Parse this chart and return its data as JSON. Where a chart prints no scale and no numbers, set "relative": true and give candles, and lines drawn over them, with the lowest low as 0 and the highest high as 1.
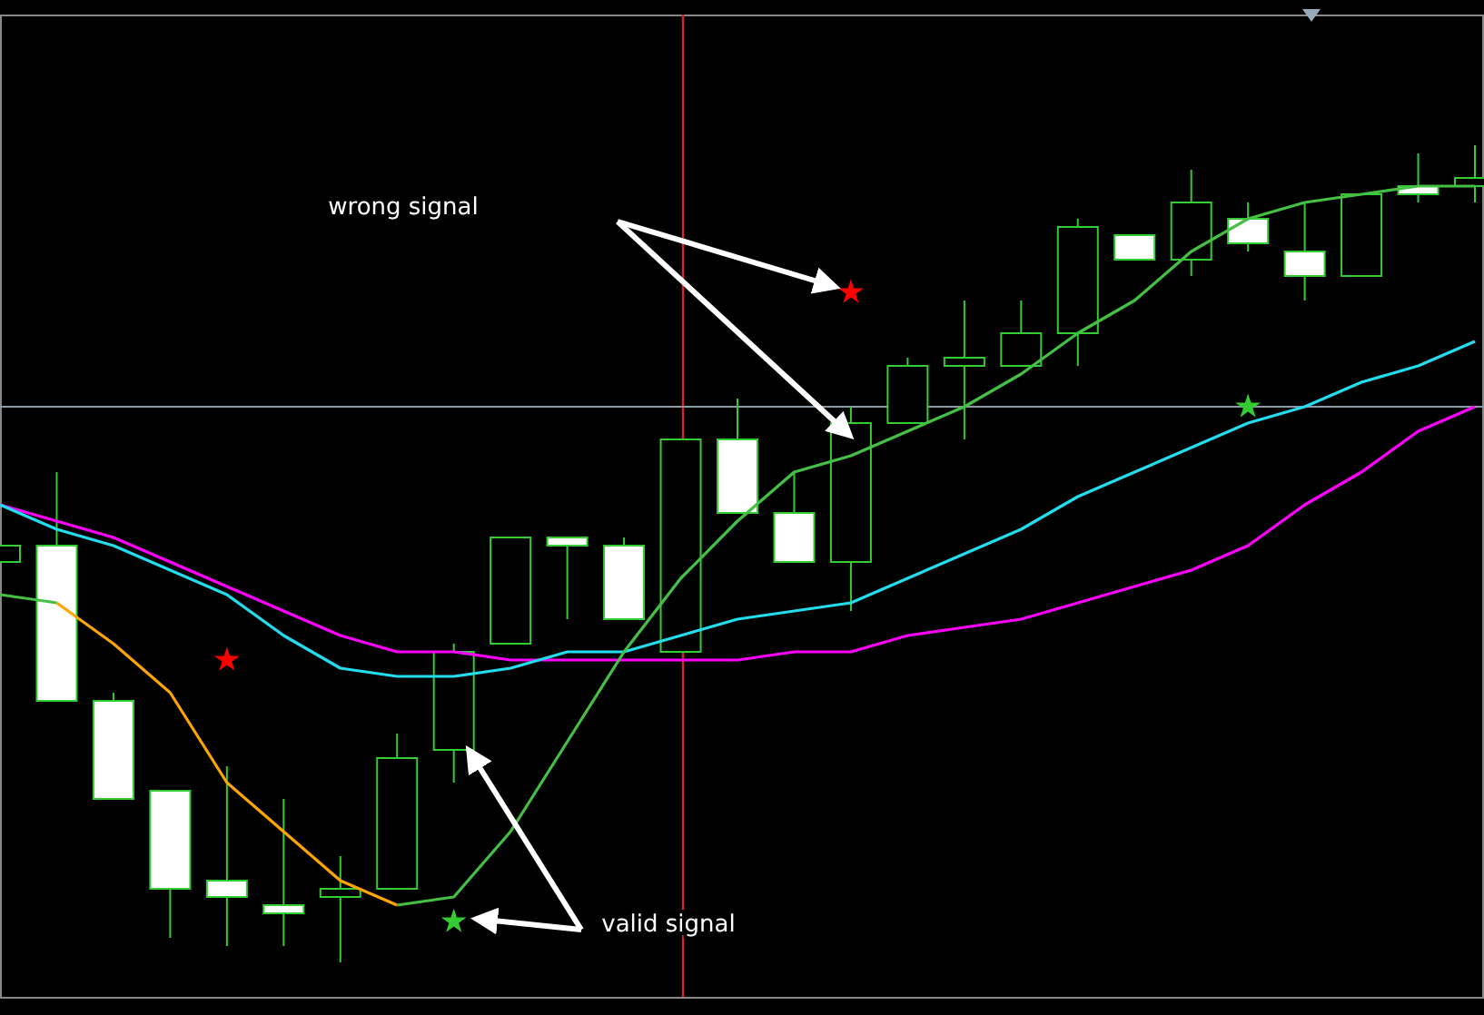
{
  "chart_data": {
    "type": "candlestick",
    "relative": true,
    "categories": [
      null,
      null,
      null,
      null,
      null,
      null,
      null,
      null,
      null,
      null,
      null,
      null,
      null,
      null,
      null,
      null,
      null,
      null,
      null,
      null,
      null,
      null,
      null,
      null,
      null,
      null,
      null
    ],
    "ohlc": [
      [
        0.49,
        0.51,
        0.49,
        0.51
      ],
      [
        0.51,
        0.6,
        0.32,
        0.32
      ],
      [
        0.32,
        0.33,
        0.2,
        0.2
      ],
      [
        0.21,
        0.21,
        0.03,
        0.09
      ],
      [
        0.1,
        0.24,
        0.02,
        0.08
      ],
      [
        0.07,
        0.2,
        0.02,
        0.06
      ],
      [
        0.08,
        0.13,
        0,
        0.09
      ],
      [
        0.09,
        0.28,
        0.09,
        0.25
      ],
      [
        0.26,
        0.39,
        0.22,
        0.38
      ],
      [
        0.39,
        0.52,
        0.39,
        0.52
      ],
      [
        0.52,
        0.52,
        0.42,
        0.51
      ],
      [
        0.51,
        0.52,
        0.42,
        0.42
      ],
      [
        0.38,
        0.64,
        0.38,
        0.64
      ],
      [
        0.64,
        0.69,
        0.55,
        0.55
      ],
      [
        0.55,
        0.6,
        0.49,
        0.49
      ],
      [
        0.49,
        0.68,
        0.43,
        0.66
      ],
      [
        0.66,
        0.74,
        0.66,
        0.73
      ],
      [
        0.73,
        0.81,
        0.64,
        0.74
      ],
      [
        0.73,
        0.81,
        0.73,
        0.77
      ],
      [
        0.77,
        0.91,
        0.73,
        0.9
      ],
      [
        0.89,
        0.89,
        0.86,
        0.86
      ],
      [
        0.86,
        0.97,
        0.84,
        0.93
      ],
      [
        0.91,
        0.93,
        0.87,
        0.88
      ],
      [
        0.87,
        0.93,
        0.81,
        0.84
      ],
      [
        0.84,
        0.94,
        0.84,
        0.94
      ],
      [
        0.95,
        0.99,
        0.93,
        0.94
      ],
      [
        0.95,
        1,
        0.93,
        0.96
      ]
    ],
    "series": [
      {
        "type": "line",
        "color": "#ff00ff",
        "values": [
          0.56,
          0.54,
          0.52,
          0.49,
          0.46,
          0.43,
          0.4,
          0.38,
          0.38,
          0.37,
          0.37,
          0.37,
          0.37,
          0.37,
          0.38,
          0.38,
          0.4,
          0.41,
          0.42,
          0.44,
          0.46,
          0.48,
          0.51,
          0.56,
          0.6,
          0.65,
          0.68
        ]
      },
      {
        "type": "line",
        "color": "#22ddee",
        "values": [
          0.56,
          0.53,
          0.51,
          0.48,
          0.45,
          0.4,
          0.36,
          0.35,
          0.35,
          0.36,
          0.38,
          0.38,
          0.4,
          0.42,
          0.43,
          0.44,
          0.47,
          0.5,
          0.53,
          0.57,
          0.6,
          0.63,
          0.66,
          0.68,
          0.71,
          0.73,
          0.76
        ]
      },
      {
        "type": "line",
        "color": "#ffa500",
        "values": [
          null,
          0.44,
          0.39,
          0.33,
          0.22,
          0.16,
          0.1,
          0.07,
          null,
          null,
          null,
          null,
          null,
          null,
          null,
          null,
          null,
          null,
          null,
          null,
          null,
          null,
          null,
          null,
          null,
          null,
          null
        ]
      },
      {
        "type": "line",
        "color": "#44c044",
        "values": [
          0.45,
          0.44,
          null,
          null,
          null,
          null,
          null,
          0.07,
          0.08,
          0.16,
          0.27,
          0.38,
          0.47,
          0.54,
          0.6,
          0.62,
          0.65,
          0.68,
          0.72,
          0.77,
          0.81,
          0.87,
          0.91,
          0.93,
          0.94,
          0.95,
          0.95
        ]
      },
      {
        "type": "scatter",
        "marker": "star",
        "color": "#ff0000",
        "values": [
          null,
          null,
          null,
          null,
          0.37,
          null,
          null,
          null,
          null,
          null,
          null,
          null,
          null,
          null,
          null,
          0.82,
          null,
          null,
          null,
          null,
          null,
          null,
          null,
          null,
          null,
          null,
          null
        ]
      },
      {
        "type": "scatter",
        "marker": "star",
        "color": "#33cc33",
        "values": [
          null,
          null,
          null,
          null,
          null,
          null,
          null,
          null,
          0.05,
          null,
          null,
          null,
          null,
          null,
          null,
          null,
          null,
          null,
          null,
          null,
          null,
          null,
          0.68,
          null,
          null,
          null,
          null
        ]
      }
    ],
    "ref_lines": [
      {
        "axis": "y",
        "value": 0.68,
        "color": "#8899aa"
      }
    ],
    "annotations": [
      "wrong signal",
      "valid signal"
    ]
  }
}
